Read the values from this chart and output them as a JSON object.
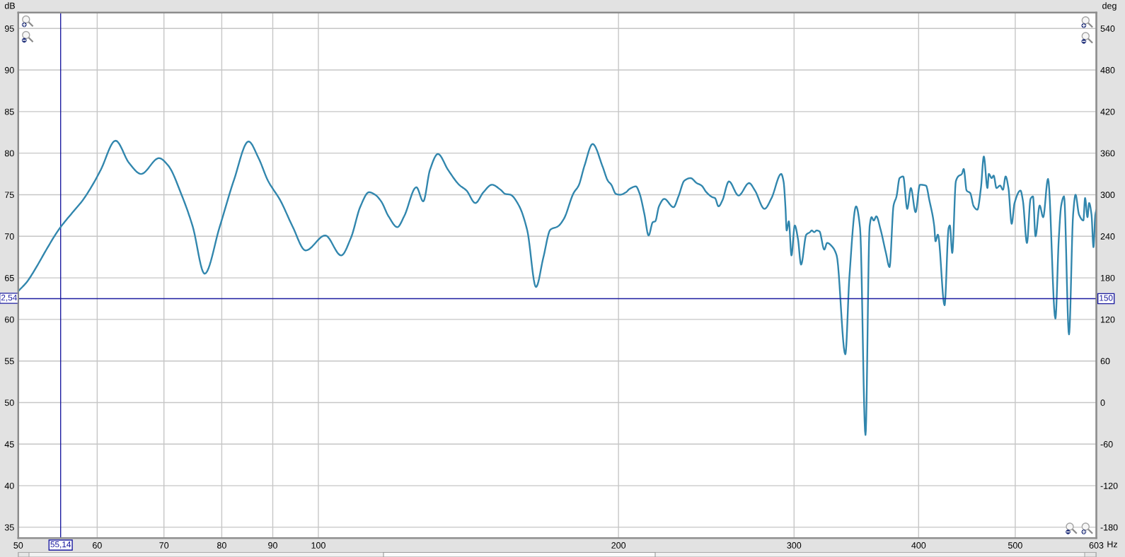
{
  "chart_data": {
    "type": "line",
    "xlabel": "Hz",
    "ylabel": "dB",
    "y2label": "deg",
    "x": [
      50.0,
      51.0,
      52.2,
      53.3,
      54.9,
      56.8,
      58.0,
      59.7,
      60.5,
      62.6,
      64.6,
      66.4,
      69.2,
      70.7,
      72.9,
      74.8,
      76.9,
      79.6,
      82.3,
      85.1,
      87.1,
      89.0,
      91.6,
      94.2,
      97.1,
      101.6,
      105.4,
      107.8,
      110.2,
      112.4,
      114.0,
      115.6,
      117.6,
      120.0,
      121.9,
      125.4,
      127.4,
      129.4,
      131.8,
      134.9,
      138.4,
      140.8,
      143.7,
      146.4,
      149.3,
      152.3,
      154.0,
      155.8,
      158.9,
      162.0,
      165.3,
      168.1,
      170.9,
      173.9,
      176.3,
      180.3,
      182.4,
      184.9,
      188.4,
      192.9,
      195.1,
      196.7,
      198.8,
      200.7,
      203.5,
      205.2,
      208.2,
      209.9,
      212.3,
      214.4,
      216.5,
      217.7,
      219.6,
      222.3,
      227.1,
      229.7,
      232.9,
      236.2,
      239.6,
      242.3,
      245.0,
      248.5,
      249.9,
      252.0,
      254.2,
      258.1,
      263.9,
      270.4,
      274.1,
      280.2,
      284.8,
      291.2,
      292.8,
      294.1,
      294.9,
      296.4,
      298.2,
      300.5,
      302.7,
      304.9,
      308.6,
      311.2,
      312.5,
      314.3,
      316.0,
      318.1,
      321.7,
      323.8,
      327.9,
      331.0,
      337.7,
      340.9,
      346.2,
      349.4,
      353.8,
      357.2,
      358.8,
      360.6,
      362.8,
      366.2,
      370.9,
      374.0,
      377.5,
      380.1,
      382.8,
      386.0,
      389.6,
      392.9,
      397.2,
      401.2,
      406.8,
      410.1,
      414.7,
      415.9,
      418.2,
      424.7,
      428.7,
      429.9,
      432.3,
      435.9,
      438.3,
      442.0,
      443.9,
      446.9,
      450.6,
      454.3,
      458.1,
      461.9,
      465.0,
      468.9,
      470.4,
      473.5,
      475.7,
      478.8,
      482.8,
      486.0,
      489.0,
      492.2,
      495.9,
      499.2,
      506.1,
      508.9,
      513.7,
      518.0,
      520.9,
      524.0,
      529.0,
      533.3,
      539.3,
      548.6,
      552.9,
      556.0,
      559.6,
      566.1,
      571.5,
      574.7,
      579.4,
      585.2,
      587.5,
      590.8,
      593.0,
      596.3,
      599.0,
      601.6,
      603.0
    ],
    "series": [
      {
        "color": "#3186ad",
        "values": [
          63.4,
          64.5,
          66.4,
          68.3,
          70.8,
          73.0,
          74.3,
          76.7,
          78.0,
          81.5,
          78.8,
          77.5,
          79.4,
          78.5,
          75.0,
          71.2,
          65.5,
          71.1,
          76.8,
          81.4,
          79.4,
          76.7,
          74.3,
          71.2,
          68.3,
          70.1,
          67.7,
          69.8,
          73.6,
          75.3,
          75.0,
          74.2,
          72.4,
          71.1,
          72.4,
          75.9,
          74.2,
          78.0,
          79.9,
          78.0,
          76.2,
          75.5,
          74.0,
          75.3,
          76.2,
          75.6,
          75.1,
          75.0,
          73.7,
          70.7,
          63.9,
          67.4,
          70.8,
          71.2,
          72.1,
          75.2,
          76.1,
          78.5,
          81.1,
          78.3,
          76.7,
          76.2,
          75.1,
          75.0,
          75.3,
          75.7,
          76.0,
          75.2,
          72.7,
          70.1,
          71.7,
          71.8,
          73.6,
          74.5,
          73.5,
          74.8,
          76.7,
          77.0,
          76.4,
          76.1,
          75.3,
          74.7,
          74.6,
          73.6,
          74.3,
          76.6,
          74.9,
          76.4,
          75.5,
          73.3,
          74.6,
          77.5,
          76.6,
          73.5,
          70.7,
          71.8,
          67.7,
          71.3,
          69.7,
          66.6,
          70.2,
          70.5,
          70.7,
          70.5,
          70.7,
          70.6,
          68.4,
          69.2,
          68.7,
          67.7,
          55.8,
          65.1,
          73.6,
          71.0,
          46.1,
          71.2,
          72.3,
          71.9,
          72.4,
          70.9,
          68.0,
          66.3,
          73.7,
          74.8,
          77.0,
          77.2,
          73.3,
          75.8,
          72.9,
          76.2,
          76.1,
          74.3,
          71.2,
          69.4,
          70.2,
          61.7,
          71.0,
          71.3,
          68.0,
          76.6,
          77.2,
          77.5,
          78.1,
          75.5,
          75.2,
          73.6,
          73.2,
          75.8,
          79.6,
          75.8,
          77.5,
          77.0,
          77.3,
          75.8,
          76.1,
          75.6,
          77.2,
          75.8,
          71.5,
          74.0,
          75.5,
          74.3,
          69.2,
          74.5,
          74.8,
          70.0,
          73.7,
          72.3,
          76.9,
          60.1,
          69.7,
          73.7,
          74.8,
          58.2,
          72.6,
          75.0,
          72.6,
          71.9,
          74.6,
          72.3,
          74.0,
          72.6,
          68.7,
          72.6,
          73.2
        ]
      }
    ],
    "log": "x",
    "xlim": [
      50,
      603
    ],
    "xticks": [
      50,
      60,
      70,
      80,
      90,
      100,
      200,
      300,
      400,
      500,
      603
    ],
    "ylim": [
      33.7,
      96.9
    ],
    "yticks": [
      35,
      40,
      45,
      50,
      55,
      60,
      65,
      70,
      75,
      80,
      85,
      90,
      95
    ],
    "y2lim": [
      -195.6,
      562.8
    ],
    "y2ticks": [
      -180,
      -120,
      -60,
      0,
      60,
      120,
      180,
      240,
      300,
      360,
      420,
      480,
      540
    ],
    "grid": true,
    "line_style": "solid",
    "ref_lines": [
      {
        "axis": "x",
        "value": 55.14,
        "label": "55,14",
        "color": "#1c1ca0"
      },
      {
        "axis": "y2",
        "value": 150,
        "label": "150",
        "color": "#1c1ca0"
      }
    ],
    "annotations": [
      {
        "text": "2,54",
        "x": 50,
        "y": 62.54
      }
    ]
  }
}
